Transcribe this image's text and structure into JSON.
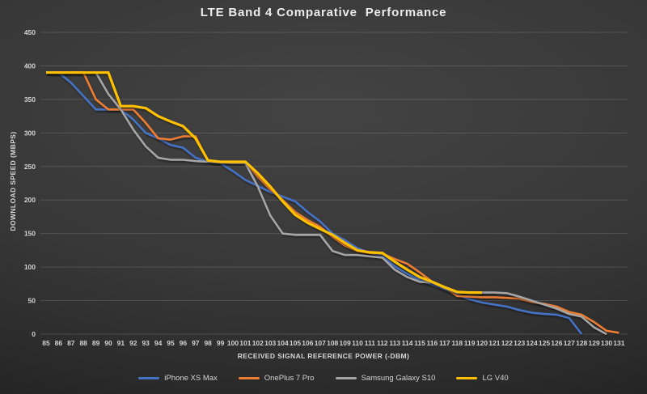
{
  "title": "LTE Band 4 Comparative  Performance",
  "chart_data": {
    "type": "line",
    "title": "LTE Band 4 Comparative  Performance",
    "xlabel": "RECEIVED SIGNAL REFERENCE POWER (-DBM)",
    "ylabel": "DOWNLOAD SPEED (MBPS)",
    "ylim": [
      0,
      450
    ],
    "ytick_step": 50,
    "grid": "horizontal",
    "legend_position": "bottom",
    "background": "dark-gray-gradient",
    "gridline_color": "rgba(255,255,255,0.14)",
    "categories": [
      85,
      86,
      87,
      88,
      89,
      90,
      91,
      92,
      93,
      94,
      95,
      96,
      97,
      98,
      99,
      100,
      101,
      102,
      103,
      104,
      105,
      106,
      107,
      108,
      109,
      110,
      111,
      112,
      113,
      114,
      115,
      116,
      117,
      118,
      119,
      120,
      121,
      122,
      123,
      124,
      125,
      126,
      127,
      128,
      129,
      130,
      131
    ],
    "series": [
      {
        "name": "iPhone XS Max",
        "color": "#4472C4",
        "values": [
          390,
          390,
          375,
          355,
          335,
          335,
          335,
          320,
          300,
          292,
          282,
          278,
          263,
          257,
          255,
          243,
          230,
          221,
          212,
          205,
          198,
          182,
          168,
          150,
          140,
          128,
          121,
          117,
          101,
          90,
          81,
          74,
          67,
          59,
          52,
          47,
          44,
          41,
          36,
          32,
          30,
          29,
          24,
          0,
          null,
          null,
          null
        ]
      },
      {
        "name": "OnePlus 7 Pro",
        "color": "#ED7D31",
        "values": [
          390,
          390,
          390,
          390,
          350,
          335,
          335,
          335,
          315,
          292,
          290,
          295,
          295,
          258,
          257,
          257,
          257,
          235,
          216,
          200,
          182,
          170,
          160,
          145,
          132,
          124,
          121,
          120,
          112,
          105,
          92,
          78,
          70,
          57,
          56,
          55,
          55,
          54,
          53,
          48,
          45,
          41,
          33,
          29,
          18,
          5,
          2
        ]
      },
      {
        "name": "Samsung Galaxy S10",
        "color": "#A5A5A5",
        "values": [
          390,
          390,
          390,
          390,
          390,
          358,
          335,
          305,
          280,
          263,
          260,
          260,
          258,
          257,
          256,
          255,
          255,
          220,
          177,
          150,
          148,
          148,
          148,
          124,
          118,
          118,
          116,
          114,
          96,
          85,
          78,
          77,
          68,
          62,
          62,
          62,
          62,
          61,
          56,
          50,
          44,
          38,
          30,
          26,
          10,
          0,
          null
        ]
      },
      {
        "name": "LG V40",
        "color": "#FFC000",
        "values": [
          390,
          390,
          390,
          390,
          390,
          390,
          340,
          340,
          337,
          325,
          317,
          310,
          292,
          259,
          257,
          257,
          257,
          240,
          220,
          198,
          178,
          166,
          157,
          148,
          136,
          125,
          122,
          121,
          108,
          96,
          85,
          78,
          70,
          63,
          62,
          62,
          null,
          null,
          null,
          null,
          null,
          null,
          null,
          null,
          null,
          null,
          null
        ]
      }
    ]
  }
}
